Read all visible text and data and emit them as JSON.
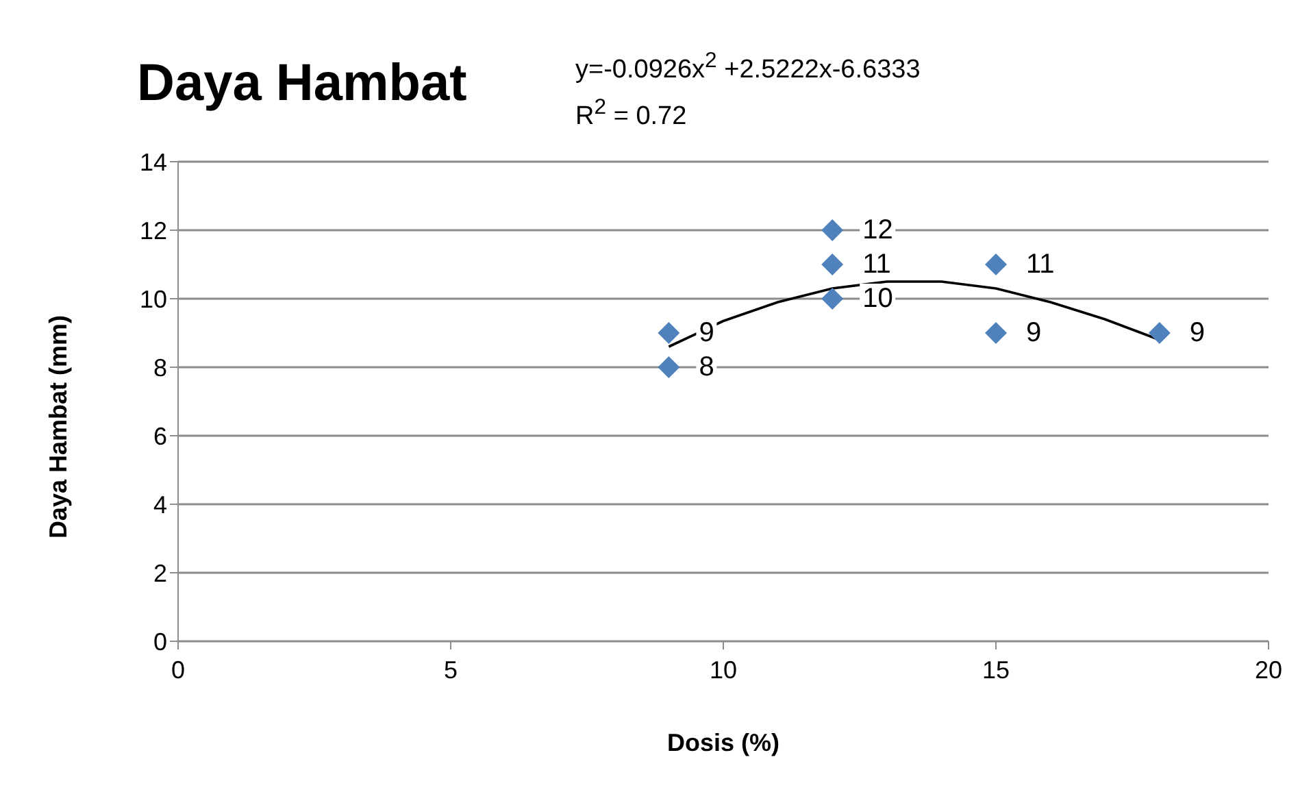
{
  "chart_data": {
    "type": "scatter",
    "title": "Daya Hambat",
    "xlabel": "Dosis (%)",
    "ylabel": "Daya Hambat (mm)",
    "annotations": [
      "y=-0.0926x$^{2}$ +2.5222x-6.6333",
      "R$^{2}$ = 0.72"
    ],
    "series": [
      {
        "color": "#4f81bd",
        "marker": "diamond",
        "data_labels": true,
        "x": [
          9,
          9,
          12,
          12,
          12,
          15,
          15,
          18
        ],
        "values": [
          9,
          8,
          12,
          11,
          10,
          11,
          9,
          9
        ]
      },
      {
        "type": "line",
        "color": "#000000",
        "marker": "none",
        "line_style": "solid",
        "x": [
          9,
          10,
          11,
          12,
          13,
          14,
          15,
          16,
          17,
          18
        ],
        "values": [
          8.6,
          9.35,
          9.9,
          10.3,
          10.5,
          10.5,
          10.3,
          9.9,
          9.4,
          8.8
        ]
      }
    ],
    "xlim": [
      0,
      20
    ],
    "xticks": [
      0,
      5,
      10,
      15,
      20
    ],
    "ylim": [
      0,
      14
    ],
    "yticks": [
      0,
      2,
      4,
      6,
      8,
      10,
      12,
      14
    ],
    "grid": "y",
    "legend": false
  }
}
